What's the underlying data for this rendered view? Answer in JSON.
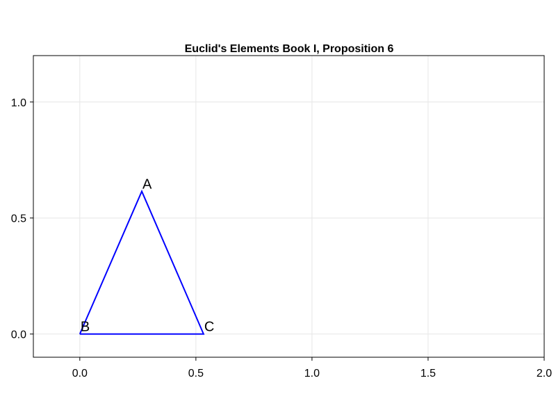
{
  "chart_data": {
    "type": "line",
    "title": "Euclid's Elements Book I, Proposition 6",
    "xlabel": "",
    "ylabel": "",
    "xlim": [
      -0.2,
      2.0
    ],
    "ylim": [
      -0.1,
      1.2
    ],
    "xticks": [
      0.0,
      0.5,
      1.0,
      1.5,
      2.0
    ],
    "xtick_labels": [
      "0.0",
      "0.5",
      "1.0",
      "1.5",
      "2.0"
    ],
    "yticks": [
      0.0,
      0.5,
      1.0
    ],
    "ytick_labels": [
      "0.0",
      "0.5",
      "1.0"
    ],
    "grid": true,
    "series": [
      {
        "color": "#0000ff",
        "x": [
          0.0,
          0.267,
          0.533,
          0.0
        ],
        "y": [
          0.0,
          0.615,
          0.0,
          0.0
        ]
      }
    ],
    "annotations": [
      {
        "text": "A",
        "x": 0.267,
        "y": 0.615
      },
      {
        "text": "B",
        "x": 0.0,
        "y": 0.0
      },
      {
        "text": "C",
        "x": 0.533,
        "y": 0.0
      }
    ]
  }
}
